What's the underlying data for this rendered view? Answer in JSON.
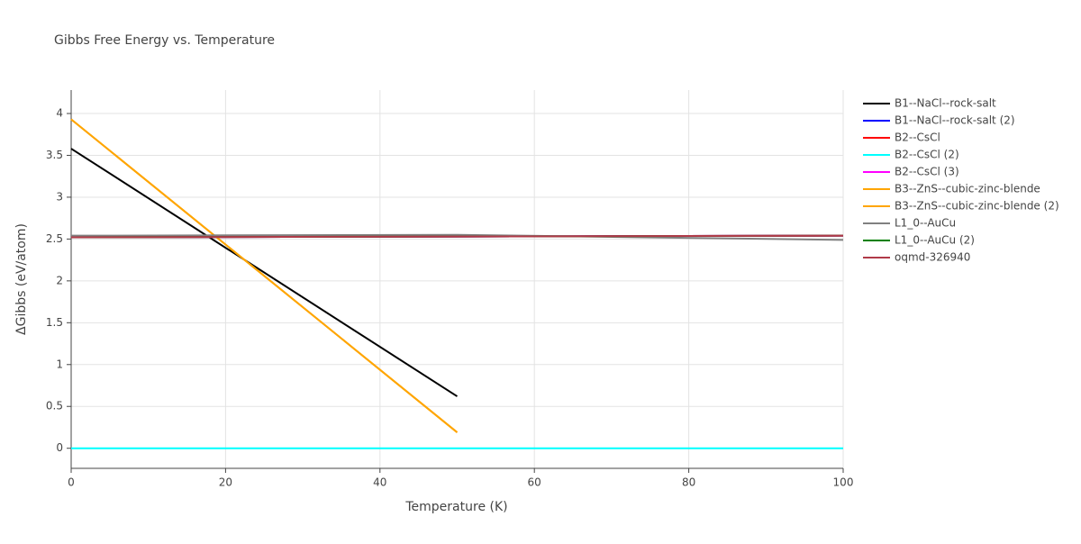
{
  "chart_data": {
    "type": "line",
    "title": "Gibbs Free Energy vs. Temperature",
    "x_label": "Temperature (K)",
    "y_label": "ΔGibbs (eV/atom)",
    "x": [
      0,
      50,
      100
    ],
    "series": [
      {
        "name": "B1--NaCl--rock-salt",
        "color": "#000000",
        "values": [
          3.58,
          0.62,
          null
        ]
      },
      {
        "name": "B1--NaCl--rock-salt (2)",
        "color": "#0000ff",
        "values": [
          2.52,
          2.53,
          2.54
        ]
      },
      {
        "name": "B2--CsCl",
        "color": "#ff0000",
        "values": [
          2.52,
          2.53,
          2.54
        ]
      },
      {
        "name": "B2--CsCl (2)",
        "color": "#00ffff",
        "values": [
          0,
          0,
          0
        ]
      },
      {
        "name": "B2--CsCl (3)",
        "color": "#ff00ff",
        "values": [
          2.52,
          2.53,
          2.54
        ]
      },
      {
        "name": "B3--ZnS--cubic-zinc-blende",
        "color": "#ffa500",
        "values": [
          3.93,
          0.19,
          null
        ]
      },
      {
        "name": "B3--ZnS--cubic-zinc-blende (2)",
        "color": "#ffa500",
        "values": [
          3.93,
          0.19,
          null
        ]
      },
      {
        "name": "L1_0--AuCu",
        "color": "#808080",
        "values": [
          2.54,
          2.55,
          2.49
        ]
      },
      {
        "name": "L1_0--AuCu (2)",
        "color": "#008000",
        "values": [
          2.52,
          2.53,
          2.54
        ]
      },
      {
        "name": "oqmd-326940",
        "color": "#b03a48",
        "values": [
          2.52,
          2.53,
          2.54
        ]
      }
    ],
    "xlim": [
      0,
      100
    ],
    "xticks": [
      0,
      20,
      40,
      60,
      80,
      100
    ],
    "ylim": [
      -0.24,
      4.28
    ],
    "yticks": [
      0,
      0.5,
      1,
      1.5,
      2,
      2.5,
      3,
      3.5,
      4
    ],
    "grid": true
  }
}
